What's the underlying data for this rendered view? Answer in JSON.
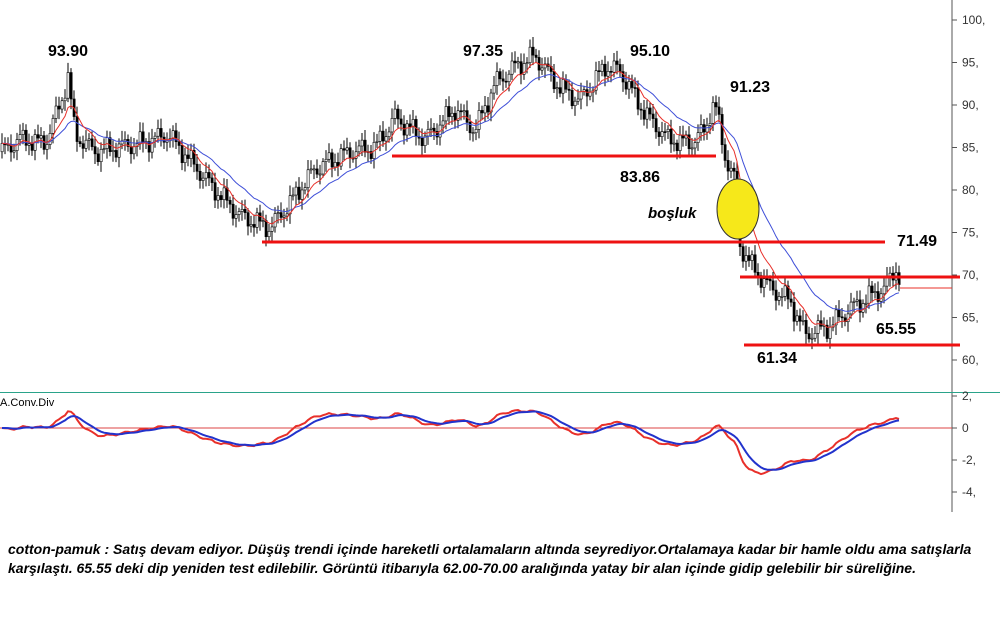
{
  "chart_data": {
    "type": "candlestick",
    "instrument": "cotton-pamuk",
    "price_axis": {
      "ticks": [
        60,
        65,
        70,
        75,
        80,
        85,
        90,
        95,
        100
      ],
      "tick_labels": [
        "60,",
        "65,",
        "70,",
        "75,",
        "80,",
        "85,",
        "90,",
        "95,",
        "100,"
      ],
      "ylim": [
        57,
        103
      ]
    },
    "indicator": {
      "title": "A.Conv.Div",
      "ticks": [
        2,
        0,
        -2,
        -4
      ],
      "tick_labels": [
        "2,",
        "0",
        "-2,",
        "-4,"
      ],
      "ylim": [
        -5,
        2.2
      ]
    },
    "annotations": {
      "peak_1": "93.90",
      "peak_2": "97.35",
      "peak_3": "95.10",
      "high_recent": "91.23",
      "support_1": "83.86",
      "level_71": "71.49",
      "low_1": "65.55",
      "low_2": "61.34",
      "gap_label": "boşluk"
    },
    "levels": [
      83.86,
      73.7,
      69.7,
      61.34
    ],
    "colors": {
      "candle": "#000000",
      "ma_fast": "#e8302a",
      "ma_slow": "#3f4fd8",
      "level": "#ee1111",
      "gap_fill": "#f6e81a"
    }
  },
  "caption": "cotton-pamuk : Satış devam ediyor. Düşüş trendi içinde hareketli ortalamaların altında seyrediyor.Ortalamaya kadar bir hamle oldu ama satışlarla karşılaştı. 65.55 deki dip yeniden test edilebilir. Görüntü itibarıyla 62.00-70.00 aralığında yatay bir alan içinde gidip gelebilir bir süreliğine."
}
